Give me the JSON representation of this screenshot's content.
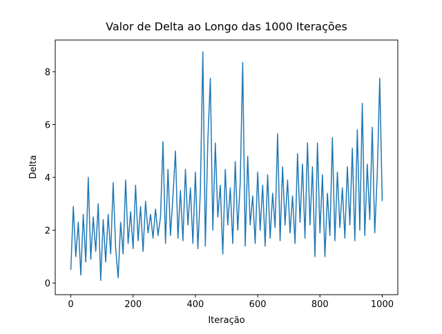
{
  "chart_data": {
    "type": "line",
    "title": "Valor de Delta ao Longo das 1000 Iterações",
    "xlabel": "Iteração",
    "ylabel": "Delta",
    "xlim": [
      -50,
      1050
    ],
    "ylim": [
      -0.44,
      9.2
    ],
    "xticks": [
      0,
      200,
      400,
      600,
      800,
      1000
    ],
    "yticks": [
      0,
      2,
      4,
      6,
      8
    ],
    "x": [
      0,
      8,
      16,
      24,
      32,
      40,
      48,
      56,
      64,
      72,
      80,
      88,
      96,
      104,
      112,
      120,
      128,
      136,
      144,
      152,
      160,
      168,
      176,
      184,
      192,
      200,
      208,
      216,
      224,
      232,
      240,
      248,
      256,
      264,
      272,
      280,
      288,
      296,
      304,
      312,
      320,
      328,
      336,
      344,
      352,
      360,
      368,
      376,
      384,
      392,
      400,
      408,
      416,
      424,
      432,
      440,
      448,
      456,
      464,
      472,
      480,
      488,
      496,
      504,
      512,
      520,
      528,
      536,
      544,
      552,
      560,
      568,
      576,
      584,
      592,
      600,
      608,
      616,
      624,
      632,
      640,
      648,
      656,
      664,
      672,
      680,
      688,
      696,
      704,
      712,
      720,
      728,
      736,
      744,
      752,
      760,
      768,
      776,
      784,
      792,
      800,
      808,
      816,
      824,
      832,
      840,
      848,
      856,
      864,
      872,
      880,
      888,
      896,
      904,
      912,
      920,
      928,
      936,
      944,
      952,
      960,
      968,
      976,
      984,
      992,
      1000
    ],
    "series": [
      {
        "name": "Delta",
        "color": "#1f77b4",
        "values": [
          0.5,
          2.9,
          1.0,
          2.3,
          0.3,
          2.6,
          0.8,
          4.0,
          0.9,
          2.5,
          1.2,
          3.0,
          0.1,
          2.4,
          0.8,
          2.6,
          1.1,
          3.8,
          1.3,
          0.2,
          2.3,
          1.1,
          3.9,
          1.5,
          2.7,
          1.3,
          3.7,
          1.6,
          2.9,
          1.2,
          3.1,
          1.9,
          2.6,
          1.7,
          2.8,
          1.8,
          2.5,
          5.35,
          1.5,
          4.3,
          1.8,
          3.3,
          5.0,
          1.7,
          3.5,
          1.6,
          4.3,
          2.2,
          3.6,
          1.5,
          4.2,
          1.3,
          3.5,
          8.75,
          1.4,
          5.4,
          7.75,
          2.0,
          5.3,
          2.5,
          3.7,
          1.1,
          4.3,
          2.2,
          3.6,
          1.5,
          4.6,
          2.0,
          3.8,
          8.35,
          1.4,
          4.8,
          2.2,
          3.3,
          1.5,
          4.2,
          2.0,
          3.7,
          1.4,
          4.1,
          1.7,
          3.4,
          2.1,
          5.65,
          1.6,
          4.4,
          2.2,
          3.9,
          1.9,
          3.3,
          1.5,
          4.9,
          2.3,
          4.5,
          1.7,
          5.3,
          2.2,
          4.4,
          1.0,
          5.3,
          1.9,
          4.1,
          1.0,
          3.4,
          1.8,
          5.5,
          1.6,
          4.2,
          2.1,
          3.6,
          1.7,
          4.4,
          2.2,
          5.1,
          1.6,
          5.8,
          2.0,
          6.8,
          1.8,
          4.5,
          2.4,
          5.9,
          1.9,
          4.1,
          7.75,
          3.1
        ]
      }
    ]
  }
}
